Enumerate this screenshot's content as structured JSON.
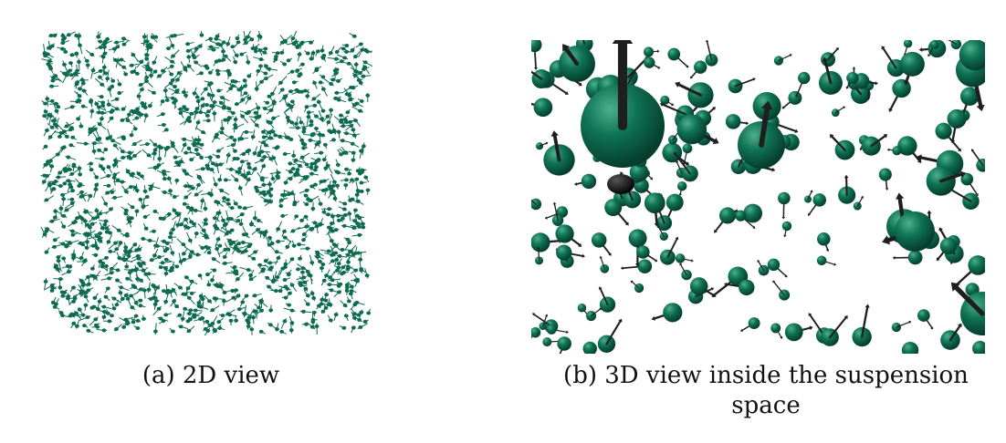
{
  "colors": {
    "particle": "#0d6b4f",
    "particle_highlight": "#3fa884",
    "arrow": "#1f1f1f",
    "background": "#ffffff"
  },
  "panel_a": {
    "caption": "(a) 2D view"
  },
  "panel_b": {
    "caption_line1": "(b) 3D view inside the suspension",
    "caption_line2": "space"
  }
}
